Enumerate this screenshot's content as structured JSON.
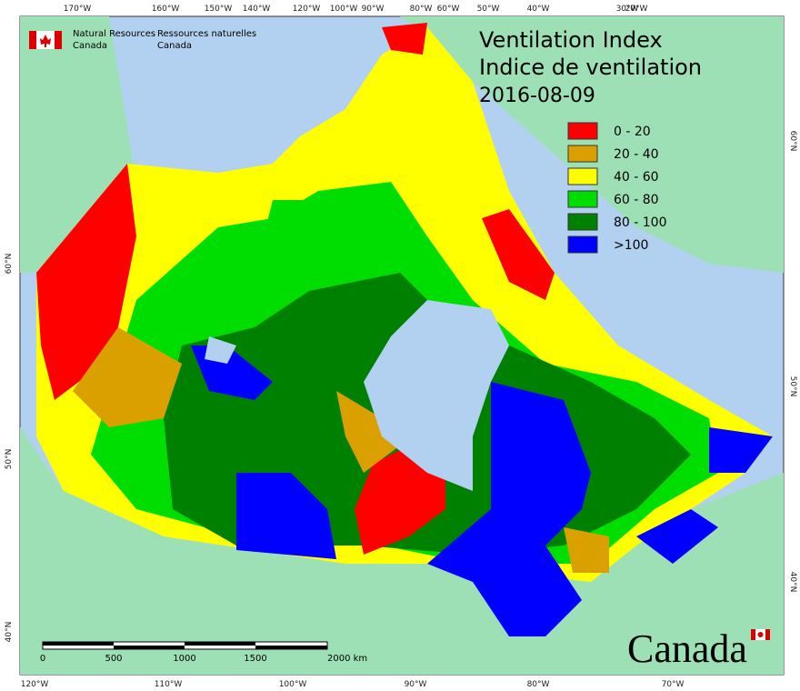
{
  "header": {
    "agency_en": [
      "Natural Resources",
      "Canada"
    ],
    "agency_fr": [
      "Ressources naturelles",
      "Canada"
    ],
    "title": "Ventilation Index",
    "subtitle": "Indice de ventilation",
    "date": "2016-08-09"
  },
  "legend": [
    {
      "label": "0 - 20",
      "color": "#ff0000"
    },
    {
      "label": "20 - 40",
      "color": "#d9a000"
    },
    {
      "label": "40 - 60",
      "color": "#ffff00"
    },
    {
      "label": "60 - 80",
      "color": "#00dd00"
    },
    {
      "label": "80 - 100",
      "color": "#008000"
    },
    {
      "label": ">100",
      "color": "#0000ff"
    }
  ],
  "graticule": {
    "top": [
      "170°W",
      "160°W",
      "150°W",
      "140°W",
      "120°W",
      "100°W",
      "90°W",
      "80°W",
      "60°W",
      "50°W",
      "40°W",
      "30°W",
      "20°W"
    ],
    "bottom": [
      "120°W",
      "110°W",
      "100°W",
      "90°W",
      "80°W",
      "70°W"
    ],
    "left": [
      "60°N",
      "50°N",
      "40°N"
    ],
    "right": [
      "60°N",
      "50°N",
      "40°N"
    ]
  },
  "scale_bar": {
    "labels": [
      "0",
      "500",
      "1000",
      "1500",
      "2000 km"
    ]
  },
  "wordmark": "Canada"
}
